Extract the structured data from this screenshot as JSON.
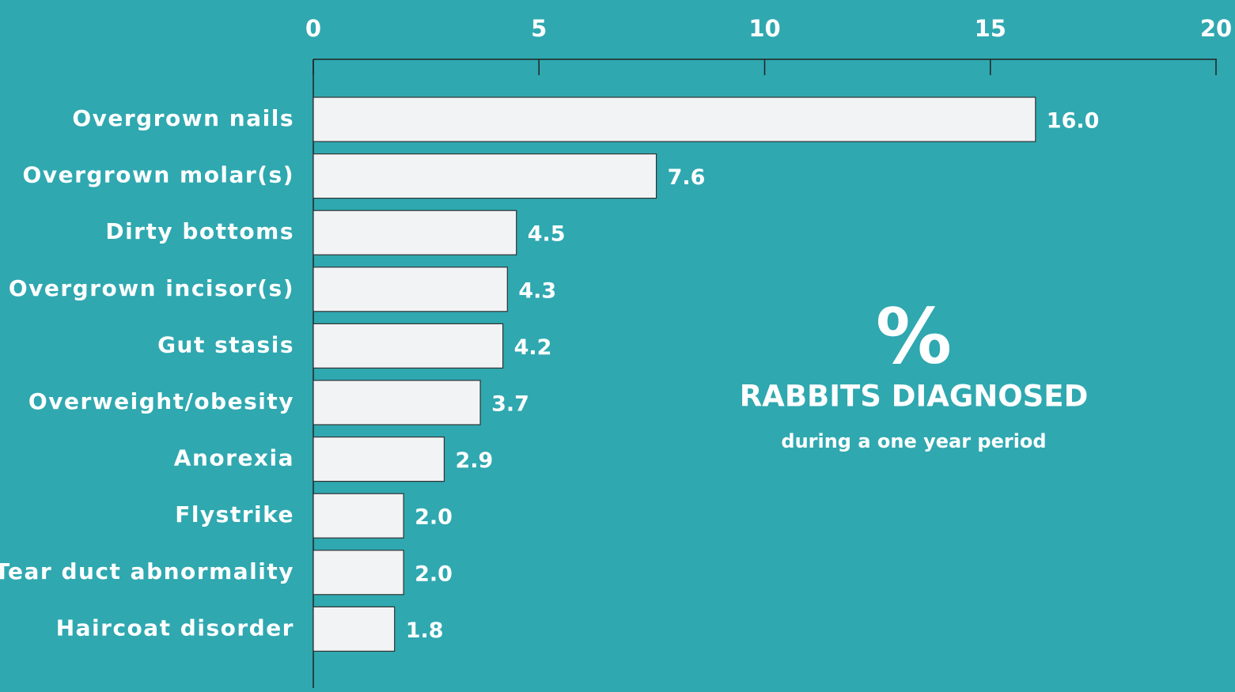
{
  "chart_data": {
    "type": "bar",
    "orientation": "horizontal",
    "categories": [
      "Overgrown nails",
      "Overgrown molar(s)",
      "Dirty bottoms",
      "Overgrown incisor(s)",
      "Gut stasis",
      "Overweight/obesity",
      "Anorexia",
      "Flystrike",
      "Tear duct abnormality",
      "Haircoat disorder"
    ],
    "values": [
      16.0,
      7.6,
      4.5,
      4.3,
      4.2,
      3.7,
      2.9,
      2.0,
      2.0,
      1.8
    ],
    "value_labels": [
      "16.0",
      "7.6",
      "4.5",
      "4.3",
      "4.2",
      "3.7",
      "2.9",
      "2.0",
      "2.0",
      "1.8"
    ],
    "color": "#f2f3f5",
    "xlim": [
      0,
      20
    ],
    "xticks": [
      0,
      5,
      10,
      15,
      20
    ],
    "annotations": [
      "%",
      "RABBITS DIAGNOSED",
      "during a one year period"
    ]
  }
}
